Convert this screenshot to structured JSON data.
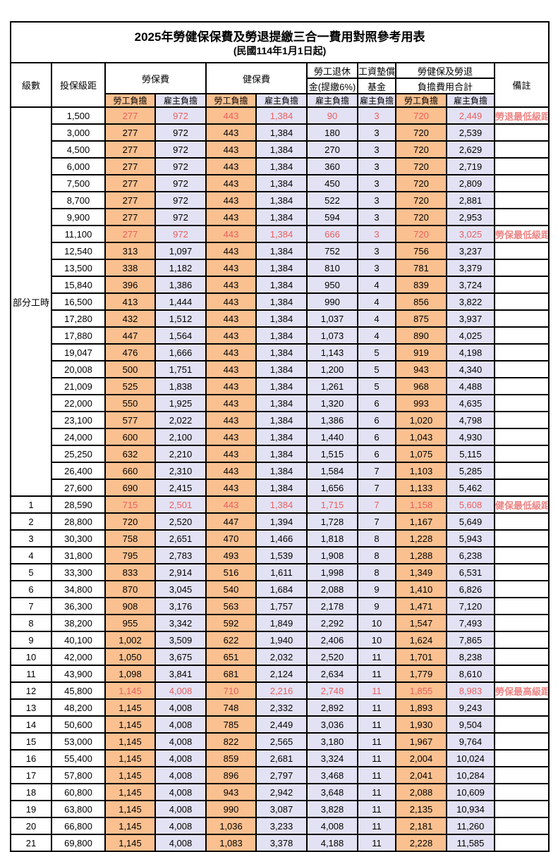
{
  "page": {
    "title_line1": "2025年勞健保保費及勞退提繳三合一費用對照參考用表",
    "title_line2": "(民國114年1月1日起)"
  },
  "header": {
    "level": "級數",
    "bracket": "投保級距",
    "labor_insurance": "勞保費",
    "health_insurance": "健保費",
    "pension_line1": "勞工退休",
    "pension_line2": "金(提繳6%)",
    "wage_fund_line1": "工資墊償",
    "wage_fund_line2": "基金",
    "total_line1": "勞健保及勞退",
    "total_line2": "負擔費用合計",
    "remarks": "備註",
    "employee_label": "勞工負擔",
    "employer_label": "雇主負擔"
  },
  "part_time_label": "部分工時",
  "part_time_rowspan": 23,
  "colors": {
    "employee_bg": "#fac090",
    "employer_bg": "#e3e2f4",
    "highlight_value": "#e86060",
    "note_red": "#ee8585",
    "border": "#000000"
  },
  "rows": [
    {
      "level": "",
      "bracket": "1,500",
      "li_emp": "277",
      "li_er": "972",
      "hi_emp": "443",
      "hi_er": "1,384",
      "pension": "90",
      "fund": "3",
      "tot_emp": "720",
      "tot_er": "2,449",
      "note": "勞退最低級距",
      "red": true
    },
    {
      "level": "",
      "bracket": "3,000",
      "li_emp": "277",
      "li_er": "972",
      "hi_emp": "443",
      "hi_er": "1,384",
      "pension": "180",
      "fund": "3",
      "tot_emp": "720",
      "tot_er": "2,539",
      "note": "",
      "red": false
    },
    {
      "level": "",
      "bracket": "4,500",
      "li_emp": "277",
      "li_er": "972",
      "hi_emp": "443",
      "hi_er": "1,384",
      "pension": "270",
      "fund": "3",
      "tot_emp": "720",
      "tot_er": "2,629",
      "note": "",
      "red": false
    },
    {
      "level": "",
      "bracket": "6,000",
      "li_emp": "277",
      "li_er": "972",
      "hi_emp": "443",
      "hi_er": "1,384",
      "pension": "360",
      "fund": "3",
      "tot_emp": "720",
      "tot_er": "2,719",
      "note": "",
      "red": false
    },
    {
      "level": "",
      "bracket": "7,500",
      "li_emp": "277",
      "li_er": "972",
      "hi_emp": "443",
      "hi_er": "1,384",
      "pension": "450",
      "fund": "3",
      "tot_emp": "720",
      "tot_er": "2,809",
      "note": "",
      "red": false
    },
    {
      "level": "",
      "bracket": "8,700",
      "li_emp": "277",
      "li_er": "972",
      "hi_emp": "443",
      "hi_er": "1,384",
      "pension": "522",
      "fund": "3",
      "tot_emp": "720",
      "tot_er": "2,881",
      "note": "",
      "red": false
    },
    {
      "level": "",
      "bracket": "9,900",
      "li_emp": "277",
      "li_er": "972",
      "hi_emp": "443",
      "hi_er": "1,384",
      "pension": "594",
      "fund": "3",
      "tot_emp": "720",
      "tot_er": "2,953",
      "note": "",
      "red": false
    },
    {
      "level": "",
      "bracket": "11,100",
      "li_emp": "277",
      "li_er": "972",
      "hi_emp": "443",
      "hi_er": "1,384",
      "pension": "666",
      "fund": "3",
      "tot_emp": "720",
      "tot_er": "3,025",
      "note": "勞保最低級距",
      "red": true
    },
    {
      "level": "",
      "bracket": "12,540",
      "li_emp": "313",
      "li_er": "1,097",
      "hi_emp": "443",
      "hi_er": "1,384",
      "pension": "752",
      "fund": "3",
      "tot_emp": "756",
      "tot_er": "3,237",
      "note": "",
      "red": false
    },
    {
      "level": "",
      "bracket": "13,500",
      "li_emp": "338",
      "li_er": "1,182",
      "hi_emp": "443",
      "hi_er": "1,384",
      "pension": "810",
      "fund": "3",
      "tot_emp": "781",
      "tot_er": "3,379",
      "note": "",
      "red": false
    },
    {
      "level": "",
      "bracket": "15,840",
      "li_emp": "396",
      "li_er": "1,386",
      "hi_emp": "443",
      "hi_er": "1,384",
      "pension": "950",
      "fund": "4",
      "tot_emp": "839",
      "tot_er": "3,724",
      "note": "",
      "red": false
    },
    {
      "level": "",
      "bracket": "16,500",
      "li_emp": "413",
      "li_er": "1,444",
      "hi_emp": "443",
      "hi_er": "1,384",
      "pension": "990",
      "fund": "4",
      "tot_emp": "856",
      "tot_er": "3,822",
      "note": "",
      "red": false
    },
    {
      "level": "",
      "bracket": "17,280",
      "li_emp": "432",
      "li_er": "1,512",
      "hi_emp": "443",
      "hi_er": "1,384",
      "pension": "1,037",
      "fund": "4",
      "tot_emp": "875",
      "tot_er": "3,937",
      "note": "",
      "red": false
    },
    {
      "level": "",
      "bracket": "17,880",
      "li_emp": "447",
      "li_er": "1,564",
      "hi_emp": "443",
      "hi_er": "1,384",
      "pension": "1,073",
      "fund": "4",
      "tot_emp": "890",
      "tot_er": "4,025",
      "note": "",
      "red": false
    },
    {
      "level": "",
      "bracket": "19,047",
      "li_emp": "476",
      "li_er": "1,666",
      "hi_emp": "443",
      "hi_er": "1,384",
      "pension": "1,143",
      "fund": "5",
      "tot_emp": "919",
      "tot_er": "4,198",
      "note": "",
      "red": false
    },
    {
      "level": "",
      "bracket": "20,008",
      "li_emp": "500",
      "li_er": "1,751",
      "hi_emp": "443",
      "hi_er": "1,384",
      "pension": "1,200",
      "fund": "5",
      "tot_emp": "943",
      "tot_er": "4,340",
      "note": "",
      "red": false
    },
    {
      "level": "",
      "bracket": "21,009",
      "li_emp": "525",
      "li_er": "1,838",
      "hi_emp": "443",
      "hi_er": "1,384",
      "pension": "1,261",
      "fund": "5",
      "tot_emp": "968",
      "tot_er": "4,488",
      "note": "",
      "red": false
    },
    {
      "level": "",
      "bracket": "22,000",
      "li_emp": "550",
      "li_er": "1,925",
      "hi_emp": "443",
      "hi_er": "1,384",
      "pension": "1,320",
      "fund": "6",
      "tot_emp": "993",
      "tot_er": "4,635",
      "note": "",
      "red": false
    },
    {
      "level": "",
      "bracket": "23,100",
      "li_emp": "577",
      "li_er": "2,022",
      "hi_emp": "443",
      "hi_er": "1,384",
      "pension": "1,386",
      "fund": "6",
      "tot_emp": "1,020",
      "tot_er": "4,798",
      "note": "",
      "red": false
    },
    {
      "level": "",
      "bracket": "24,000",
      "li_emp": "600",
      "li_er": "2,100",
      "hi_emp": "443",
      "hi_er": "1,384",
      "pension": "1,440",
      "fund": "6",
      "tot_emp": "1,043",
      "tot_er": "4,930",
      "note": "",
      "red": false
    },
    {
      "level": "",
      "bracket": "25,250",
      "li_emp": "632",
      "li_er": "2,210",
      "hi_emp": "443",
      "hi_er": "1,384",
      "pension": "1,515",
      "fund": "6",
      "tot_emp": "1,075",
      "tot_er": "5,115",
      "note": "",
      "red": false
    },
    {
      "level": "",
      "bracket": "26,400",
      "li_emp": "660",
      "li_er": "2,310",
      "hi_emp": "443",
      "hi_er": "1,384",
      "pension": "1,584",
      "fund": "7",
      "tot_emp": "1,103",
      "tot_er": "5,285",
      "note": "",
      "red": false
    },
    {
      "level": "",
      "bracket": "27,600",
      "li_emp": "690",
      "li_er": "2,415",
      "hi_emp": "443",
      "hi_er": "1,384",
      "pension": "1,656",
      "fund": "7",
      "tot_emp": "1,133",
      "tot_er": "5,462",
      "note": "",
      "red": false
    },
    {
      "level": "1",
      "bracket": "28,590",
      "li_emp": "715",
      "li_er": "2,501",
      "hi_emp": "443",
      "hi_er": "1,384",
      "pension": "1,715",
      "fund": "7",
      "tot_emp": "1,158",
      "tot_er": "5,608",
      "note": "健保最低級距",
      "red": true
    },
    {
      "level": "2",
      "bracket": "28,800",
      "li_emp": "720",
      "li_er": "2,520",
      "hi_emp": "447",
      "hi_er": "1,394",
      "pension": "1,728",
      "fund": "7",
      "tot_emp": "1,167",
      "tot_er": "5,649",
      "note": "",
      "red": false
    },
    {
      "level": "3",
      "bracket": "30,300",
      "li_emp": "758",
      "li_er": "2,651",
      "hi_emp": "470",
      "hi_er": "1,466",
      "pension": "1,818",
      "fund": "8",
      "tot_emp": "1,228",
      "tot_er": "5,943",
      "note": "",
      "red": false
    },
    {
      "level": "4",
      "bracket": "31,800",
      "li_emp": "795",
      "li_er": "2,783",
      "hi_emp": "493",
      "hi_er": "1,539",
      "pension": "1,908",
      "fund": "8",
      "tot_emp": "1,288",
      "tot_er": "6,238",
      "note": "",
      "red": false
    },
    {
      "level": "5",
      "bracket": "33,300",
      "li_emp": "833",
      "li_er": "2,914",
      "hi_emp": "516",
      "hi_er": "1,611",
      "pension": "1,998",
      "fund": "8",
      "tot_emp": "1,349",
      "tot_er": "6,531",
      "note": "",
      "red": false
    },
    {
      "level": "6",
      "bracket": "34,800",
      "li_emp": "870",
      "li_er": "3,045",
      "hi_emp": "540",
      "hi_er": "1,684",
      "pension": "2,088",
      "fund": "9",
      "tot_emp": "1,410",
      "tot_er": "6,826",
      "note": "",
      "red": false
    },
    {
      "level": "7",
      "bracket": "36,300",
      "li_emp": "908",
      "li_er": "3,176",
      "hi_emp": "563",
      "hi_er": "1,757",
      "pension": "2,178",
      "fund": "9",
      "tot_emp": "1,471",
      "tot_er": "7,120",
      "note": "",
      "red": false
    },
    {
      "level": "8",
      "bracket": "38,200",
      "li_emp": "955",
      "li_er": "3,342",
      "hi_emp": "592",
      "hi_er": "1,849",
      "pension": "2,292",
      "fund": "10",
      "tot_emp": "1,547",
      "tot_er": "7,493",
      "note": "",
      "red": false
    },
    {
      "level": "9",
      "bracket": "40,100",
      "li_emp": "1,002",
      "li_er": "3,509",
      "hi_emp": "622",
      "hi_er": "1,940",
      "pension": "2,406",
      "fund": "10",
      "tot_emp": "1,624",
      "tot_er": "7,865",
      "note": "",
      "red": false
    },
    {
      "level": "10",
      "bracket": "42,000",
      "li_emp": "1,050",
      "li_er": "3,675",
      "hi_emp": "651",
      "hi_er": "2,032",
      "pension": "2,520",
      "fund": "11",
      "tot_emp": "1,701",
      "tot_er": "8,238",
      "note": "",
      "red": false
    },
    {
      "level": "11",
      "bracket": "43,900",
      "li_emp": "1,098",
      "li_er": "3,841",
      "hi_emp": "681",
      "hi_er": "2,124",
      "pension": "2,634",
      "fund": "11",
      "tot_emp": "1,779",
      "tot_er": "8,610",
      "note": "",
      "red": false
    },
    {
      "level": "12",
      "bracket": "45,800",
      "li_emp": "1,145",
      "li_er": "4,008",
      "hi_emp": "710",
      "hi_er": "2,216",
      "pension": "2,748",
      "fund": "11",
      "tot_emp": "1,855",
      "tot_er": "8,983",
      "note": "勞保最高級距",
      "red": true
    },
    {
      "level": "13",
      "bracket": "48,200",
      "li_emp": "1,145",
      "li_er": "4,008",
      "hi_emp": "748",
      "hi_er": "2,332",
      "pension": "2,892",
      "fund": "11",
      "tot_emp": "1,893",
      "tot_er": "9,243",
      "note": "",
      "red": false
    },
    {
      "level": "14",
      "bracket": "50,600",
      "li_emp": "1,145",
      "li_er": "4,008",
      "hi_emp": "785",
      "hi_er": "2,449",
      "pension": "3,036",
      "fund": "11",
      "tot_emp": "1,930",
      "tot_er": "9,504",
      "note": "",
      "red": false
    },
    {
      "level": "15",
      "bracket": "53,000",
      "li_emp": "1,145",
      "li_er": "4,008",
      "hi_emp": "822",
      "hi_er": "2,565",
      "pension": "3,180",
      "fund": "11",
      "tot_emp": "1,967",
      "tot_er": "9,764",
      "note": "",
      "red": false
    },
    {
      "level": "16",
      "bracket": "55,400",
      "li_emp": "1,145",
      "li_er": "4,008",
      "hi_emp": "859",
      "hi_er": "2,681",
      "pension": "3,324",
      "fund": "11",
      "tot_emp": "2,004",
      "tot_er": "10,024",
      "note": "",
      "red": false
    },
    {
      "level": "17",
      "bracket": "57,800",
      "li_emp": "1,145",
      "li_er": "4,008",
      "hi_emp": "896",
      "hi_er": "2,797",
      "pension": "3,468",
      "fund": "11",
      "tot_emp": "2,041",
      "tot_er": "10,284",
      "note": "",
      "red": false
    },
    {
      "level": "18",
      "bracket": "60,800",
      "li_emp": "1,145",
      "li_er": "4,008",
      "hi_emp": "943",
      "hi_er": "2,942",
      "pension": "3,648",
      "fund": "11",
      "tot_emp": "2,088",
      "tot_er": "10,609",
      "note": "",
      "red": false
    },
    {
      "level": "19",
      "bracket": "63,800",
      "li_emp": "1,145",
      "li_er": "4,008",
      "hi_emp": "990",
      "hi_er": "3,087",
      "pension": "3,828",
      "fund": "11",
      "tot_emp": "2,135",
      "tot_er": "10,934",
      "note": "",
      "red": false
    },
    {
      "level": "20",
      "bracket": "66,800",
      "li_emp": "1,145",
      "li_er": "4,008",
      "hi_emp": "1,036",
      "hi_er": "3,233",
      "pension": "4,008",
      "fund": "11",
      "tot_emp": "2,181",
      "tot_er": "11,260",
      "note": "",
      "red": false
    },
    {
      "level": "21",
      "bracket": "69,800",
      "li_emp": "1,145",
      "li_er": "4,008",
      "hi_emp": "1,083",
      "hi_er": "3,378",
      "pension": "4,188",
      "fund": "11",
      "tot_emp": "2,228",
      "tot_er": "11,585",
      "note": "",
      "red": false
    }
  ]
}
